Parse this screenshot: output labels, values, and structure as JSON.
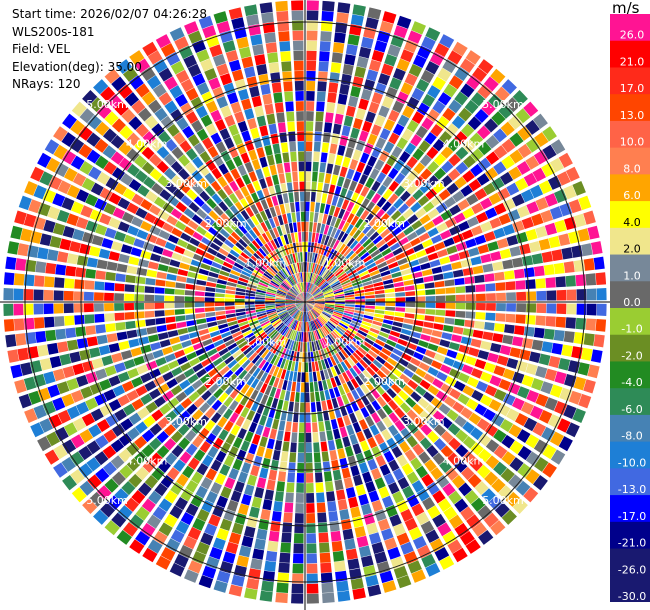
{
  "header": {
    "start_time": "Start time: 2026/02/07 04:26:28",
    "instrument": "WLS200s-181",
    "field": "Field: VEL",
    "elevation": "Elevation(deg): 35.00",
    "nrays": "NRays: 120"
  },
  "ppi": {
    "n_rays": 120,
    "n_gates": 30,
    "range_ring_labels": [
      "1.00km",
      "2.00km",
      "3.00km",
      "4.00km",
      "5.00km"
    ]
  },
  "colorbar": {
    "unit": "m/s",
    "bins": [
      {
        "label": "26.0",
        "color": "#ff1493"
      },
      {
        "label": "21.0",
        "color": "#ff0000"
      },
      {
        "label": "17.0",
        "color": "#ff2a1a"
      },
      {
        "label": "13.0",
        "color": "#ff4500"
      },
      {
        "label": "10.0",
        "color": "#ff6347"
      },
      {
        "label": "8.0",
        "color": "#ff7f50"
      },
      {
        "label": "6.0",
        "color": "#ffa500"
      },
      {
        "label": "4.0",
        "color": "#ffff00"
      },
      {
        "label": "2.0",
        "color": "#f0e68c"
      },
      {
        "label": "1.0",
        "color": "#778899"
      },
      {
        "label": "0.0",
        "color": "#696969"
      },
      {
        "label": "-1.0",
        "color": "#9acd32"
      },
      {
        "label": "-2.0",
        "color": "#6b8e23"
      },
      {
        "label": "-4.0",
        "color": "#228b22"
      },
      {
        "label": "-6.0",
        "color": "#2e8b57"
      },
      {
        "label": "-8.0",
        "color": "#4682b4"
      },
      {
        "label": "-10.0",
        "color": "#1e7fd6"
      },
      {
        "label": "-13.0",
        "color": "#4169e1"
      },
      {
        "label": "-17.0",
        "color": "#0000ff"
      },
      {
        "label": "-21.0",
        "color": "#00008b"
      },
      {
        "label": "-26.0",
        "color": "#191970"
      },
      {
        "label": "-30.0",
        "color": "#191970"
      }
    ]
  }
}
